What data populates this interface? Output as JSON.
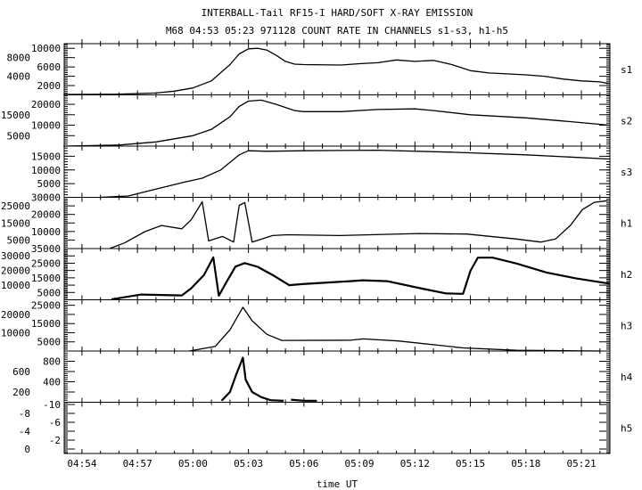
{
  "chart_data": {
    "type": "line",
    "title": "INTERBALL-Tail RF15-I HARD/SOFT X-RAY EMISSION",
    "subtitle": "M68  04:53 05:23 971128  COUNT RATE IN CHANNELS s1-s3, h1-h5",
    "xlabel": "time UT",
    "x_units": "minutes after 04:00 UT",
    "xlim": [
      53.04,
      82.54
    ],
    "x_ticks": [
      54,
      57,
      60,
      63,
      66,
      69,
      72,
      75,
      78,
      81
    ],
    "x_tick_labels": [
      "04:54",
      "04:57",
      "05:00",
      "05:03",
      "05:06",
      "05:09",
      "05:12",
      "05:15",
      "05:18",
      "05:21"
    ],
    "grid": false,
    "panels": [
      {
        "name": "s1",
        "ylim": [
          0,
          11000
        ],
        "y_ticks": [
          2000,
          4000,
          6000,
          8000,
          10000
        ],
        "y_tick_labels": [
          "2000",
          "4000",
          "6000",
          "8000",
          "10000"
        ],
        "points": [
          [
            53,
            100
          ],
          [
            56,
            150
          ],
          [
            58,
            400
          ],
          [
            59,
            800
          ],
          [
            60,
            1500
          ],
          [
            61,
            3000
          ],
          [
            62,
            6500
          ],
          [
            62.5,
            8800
          ],
          [
            63,
            9900
          ],
          [
            63.5,
            10000
          ],
          [
            64,
            9600
          ],
          [
            64.5,
            8500
          ],
          [
            65,
            7200
          ],
          [
            65.5,
            6600
          ],
          [
            66,
            6500
          ],
          [
            68,
            6400
          ],
          [
            69,
            6700
          ],
          [
            70,
            6900
          ],
          [
            71,
            7500
          ],
          [
            72,
            7200
          ],
          [
            73,
            7400
          ],
          [
            74,
            6500
          ],
          [
            75,
            5200
          ],
          [
            76,
            4700
          ],
          [
            78,
            4300
          ],
          [
            79,
            4000
          ],
          [
            80,
            3400
          ],
          [
            81,
            3000
          ],
          [
            82,
            2800
          ],
          [
            82.5,
            2400
          ]
        ]
      },
      {
        "name": "s2",
        "ylim": [
          0,
          24500
        ],
        "y_ticks": [
          5000,
          10000,
          15000,
          20000
        ],
        "y_tick_labels": [
          "5000",
          "10000",
          "15000",
          "20000"
        ],
        "points": [
          [
            53,
            0
          ],
          [
            56,
            500
          ],
          [
            58,
            2000
          ],
          [
            60,
            5000
          ],
          [
            61,
            8000
          ],
          [
            62,
            14000
          ],
          [
            62.5,
            19000
          ],
          [
            63,
            21500
          ],
          [
            63.7,
            22000
          ],
          [
            64.5,
            20000
          ],
          [
            65.5,
            17000
          ],
          [
            66,
            16500
          ],
          [
            68,
            16500
          ],
          [
            70,
            17500
          ],
          [
            72,
            17800
          ],
          [
            73,
            17000
          ],
          [
            75,
            15000
          ],
          [
            78,
            13500
          ],
          [
            80,
            12000
          ],
          [
            82.5,
            10000
          ]
        ]
      },
      {
        "name": "s3",
        "ylim": [
          0,
          18700
        ],
        "y_ticks": [
          5000,
          10000,
          15000
        ],
        "y_tick_labels": [
          "5000",
          "10000",
          "15000"
        ],
        "points": [
          [
            55,
            0
          ],
          [
            56.5,
            500
          ],
          [
            58,
            3000
          ],
          [
            59.5,
            5500
          ],
          [
            60.5,
            7000
          ],
          [
            61.5,
            10000
          ],
          [
            62.5,
            15500
          ],
          [
            63,
            17000
          ],
          [
            64,
            16800
          ],
          [
            66,
            17000
          ],
          [
            70,
            17200
          ],
          [
            74,
            16500
          ],
          [
            78,
            15500
          ],
          [
            82.5,
            14000
          ]
        ]
      },
      {
        "name": "h1",
        "ylim": [
          0,
          30000
        ],
        "y_ticks": [
          5000,
          10000,
          15000,
          20000,
          25000,
          30000
        ],
        "y_tick_labels": [
          "5000",
          "10000",
          "15000",
          "20000",
          "25000",
          "30000"
        ],
        "points": [
          [
            55.5,
            0
          ],
          [
            56.3,
            3300
          ],
          [
            57.4,
            9900
          ],
          [
            58.3,
            13500
          ],
          [
            59.4,
            11600
          ],
          [
            59.9,
            16800
          ],
          [
            60.5,
            27400
          ],
          [
            60.85,
            4500
          ],
          [
            61.6,
            7100
          ],
          [
            62.2,
            3800
          ],
          [
            62.5,
            25300
          ],
          [
            62.8,
            27000
          ],
          [
            63.2,
            3800
          ],
          [
            64.3,
            7600
          ],
          [
            65.1,
            8100
          ],
          [
            67.9,
            7600
          ],
          [
            72.2,
            8800
          ],
          [
            74.8,
            8500
          ],
          [
            77.5,
            5600
          ],
          [
            78.8,
            3800
          ],
          [
            79.6,
            5600
          ],
          [
            80.4,
            13500
          ],
          [
            81.05,
            22800
          ],
          [
            81.7,
            27100
          ],
          [
            82.4,
            28000
          ]
        ]
      },
      {
        "name": "h2",
        "ylim": [
          0,
          35000
        ],
        "y_ticks": [
          5000,
          10000,
          15000,
          20000,
          25000,
          30000,
          35000
        ],
        "y_tick_labels": [
          "5000",
          "10000",
          "15000",
          "20000",
          "25000",
          "30000",
          "35000"
        ],
        "points": [
          [
            55.6,
            300
          ],
          [
            57.2,
            3600
          ],
          [
            59.4,
            3000
          ],
          [
            59.9,
            7800
          ],
          [
            60.6,
            17000
          ],
          [
            61.1,
            29000
          ],
          [
            61.4,
            2800
          ],
          [
            61.8,
            11800
          ],
          [
            62.3,
            22700
          ],
          [
            62.8,
            25100
          ],
          [
            63.5,
            22500
          ],
          [
            64.3,
            17000
          ],
          [
            65.2,
            10000
          ],
          [
            65.9,
            10700
          ],
          [
            68.5,
            12700
          ],
          [
            69.2,
            13300
          ],
          [
            70.5,
            12700
          ],
          [
            72.4,
            7600
          ],
          [
            73.7,
            4300
          ],
          [
            74.6,
            4100
          ],
          [
            75,
            19800
          ],
          [
            75.4,
            28800
          ],
          [
            76.2,
            28800
          ],
          [
            77.5,
            24800
          ],
          [
            79.1,
            18700
          ],
          [
            80.7,
            14700
          ],
          [
            82.5,
            11100
          ]
        ]
      },
      {
        "name": "h3",
        "ylim": [
          0,
          28000
        ],
        "y_ticks": [
          5000,
          10000,
          15000,
          20000,
          25000
        ],
        "y_tick_labels": [
          "5000",
          "10000",
          "15000",
          "20000",
          "25000"
        ],
        "points": [
          [
            59.8,
            0
          ],
          [
            61.2,
            2500
          ],
          [
            62,
            11600
          ],
          [
            62.7,
            23900
          ],
          [
            63.2,
            16500
          ],
          [
            64,
            9100
          ],
          [
            64.8,
            5800
          ],
          [
            68.5,
            5900
          ],
          [
            69.2,
            6600
          ],
          [
            71.1,
            5500
          ],
          [
            74.6,
            1700
          ],
          [
            77.5,
            400
          ],
          [
            82,
            0
          ]
        ]
      },
      {
        "name": "h4",
        "ylim": [
          0,
          1000
        ],
        "y_ticks": [
          200,
          400,
          600,
          800
        ],
        "y_tick_labels": [
          "200",
          "400",
          "600",
          "800"
        ],
        "points": [
          [
            61.55,
            30
          ],
          [
            62,
            200
          ],
          [
            62.35,
            550
          ],
          [
            62.7,
            870
          ],
          [
            62.85,
            440
          ],
          [
            63.2,
            200
          ],
          [
            63.7,
            100
          ],
          [
            64.2,
            40
          ],
          [
            64.9,
            30
          ]
        ],
        "points_b": [
          [
            65.3,
            50
          ],
          [
            66,
            30
          ],
          [
            66.7,
            30
          ]
        ]
      },
      {
        "name": "h5",
        "ylim": [
          1,
          -10.5
        ],
        "y_ticks": [
          -10,
          -8,
          -6,
          -4,
          -2,
          0
        ],
        "y_tick_labels": [
          "-10",
          "-8",
          "-6",
          "-4",
          "-2",
          "0"
        ],
        "points": []
      }
    ]
  }
}
